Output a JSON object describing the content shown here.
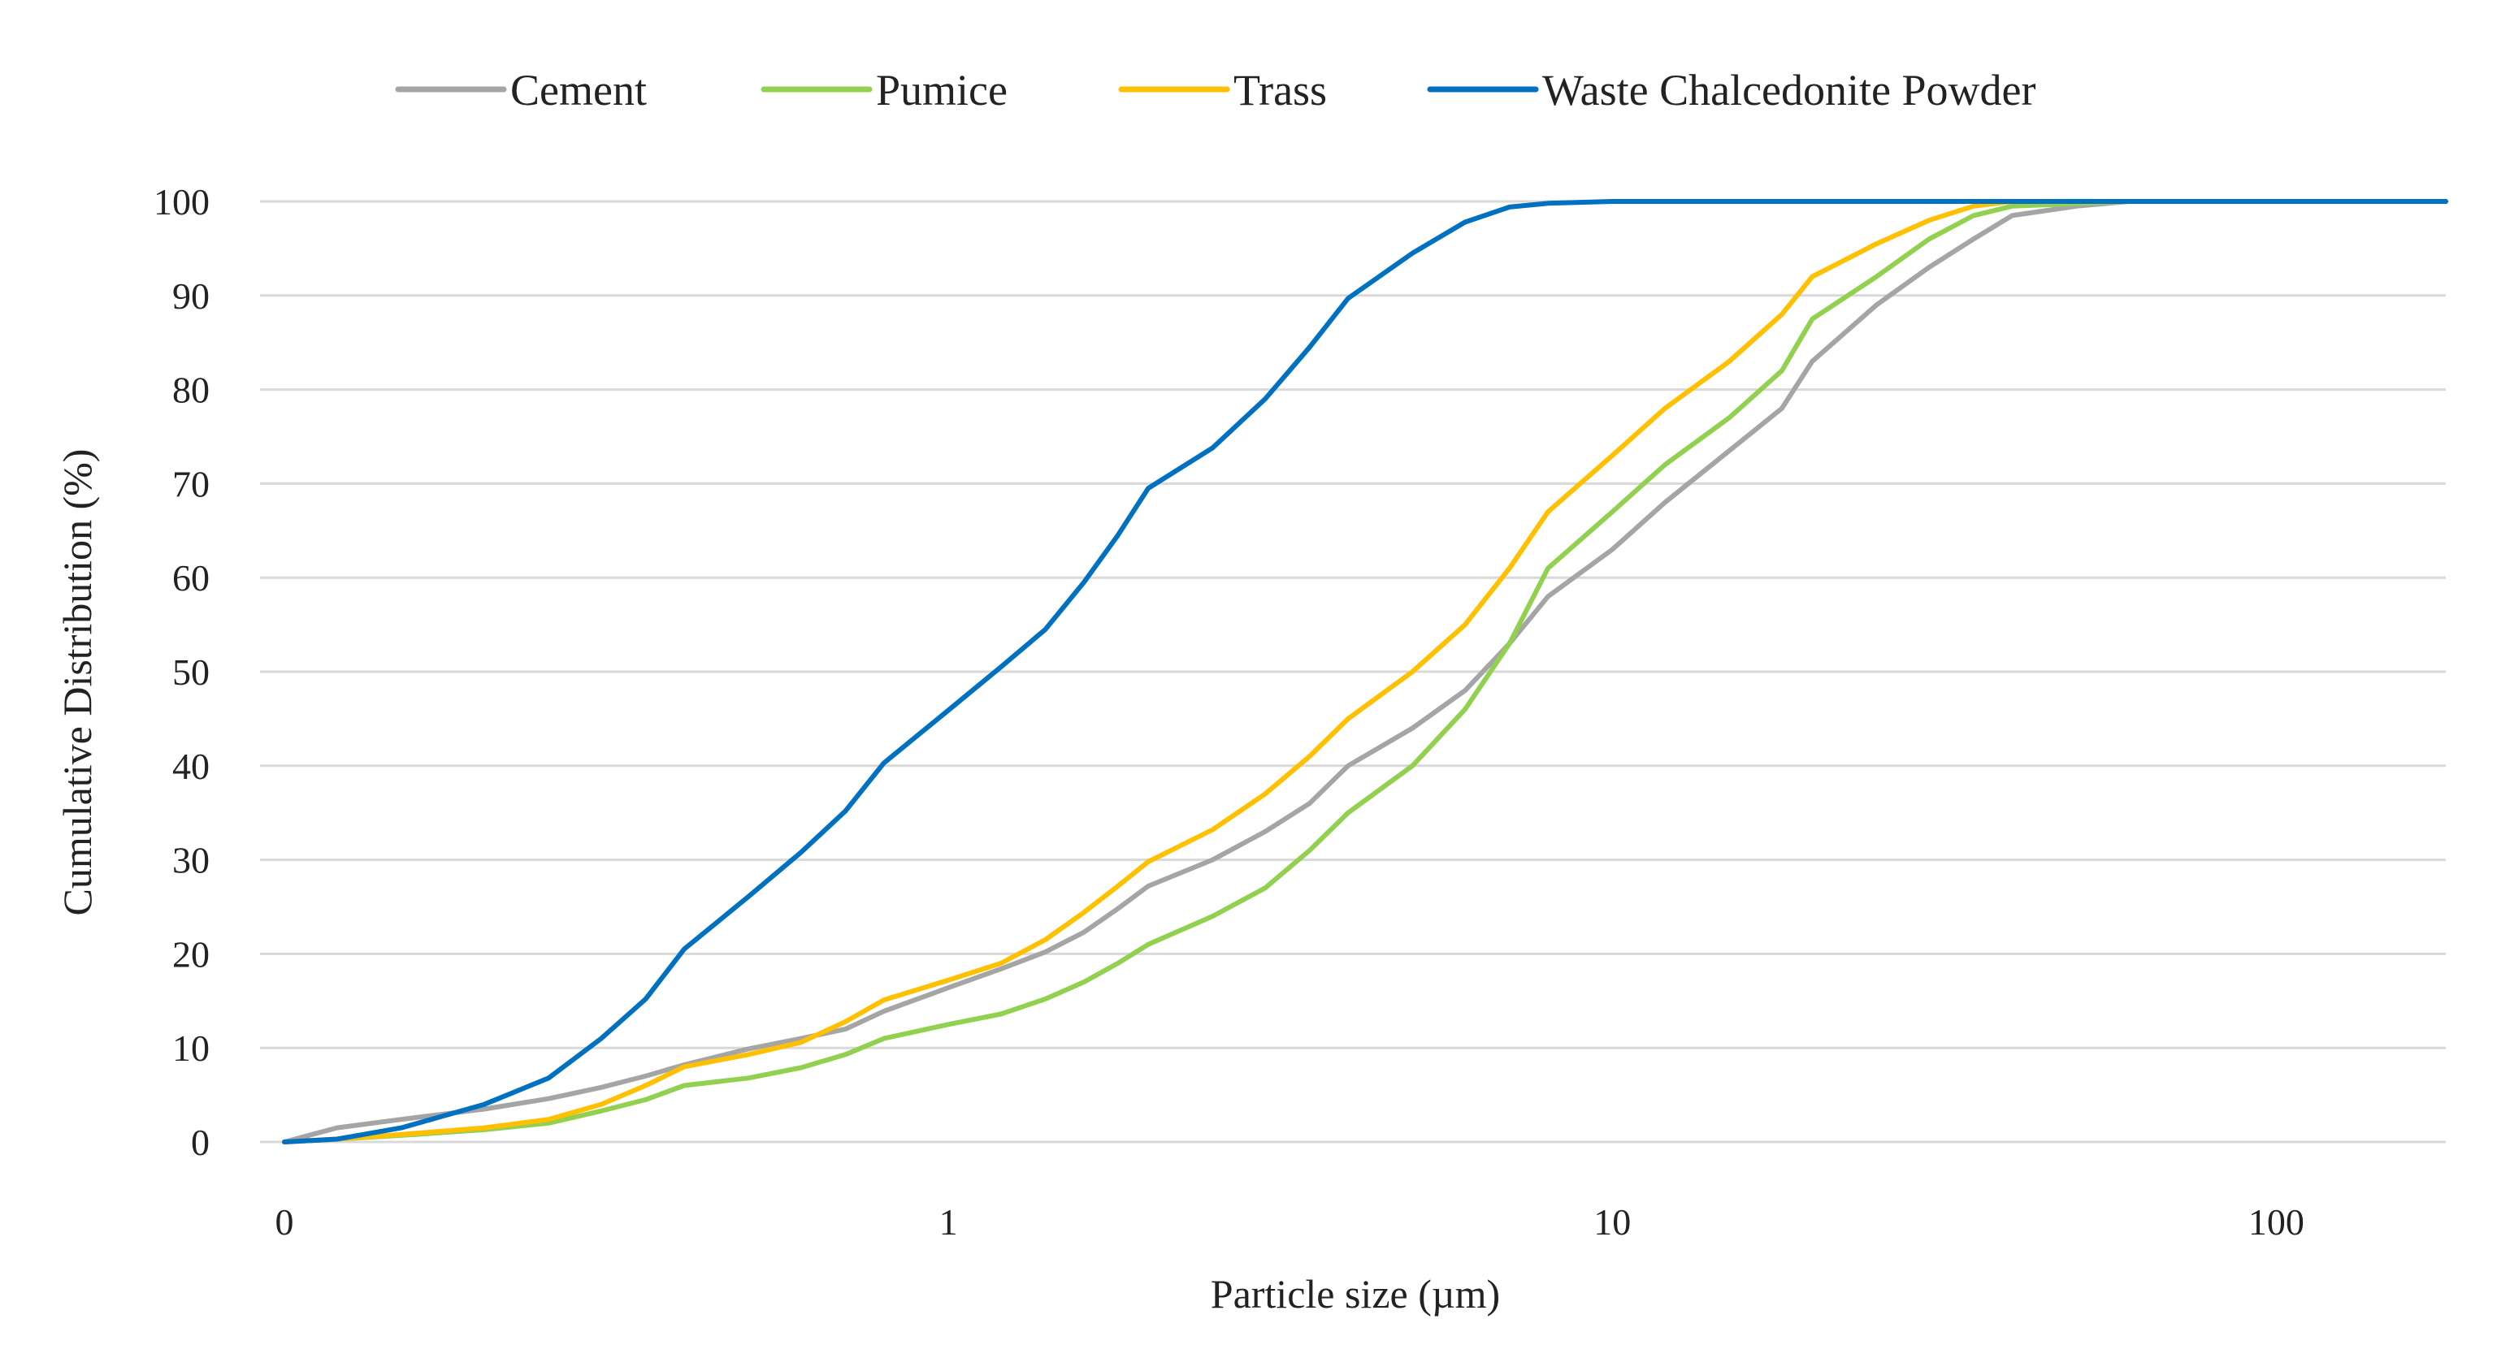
{
  "chart_data": {
    "type": "line",
    "title": "",
    "xlabel": "Particle size (µm)",
    "ylabel": "Cumulative Distribution (%)",
    "x_scale": "log",
    "x_origin_label": "0",
    "x_origin_value": 0.1,
    "xlim": [
      0.1,
      180
    ],
    "ylim": [
      0,
      100
    ],
    "x_ticks": [
      {
        "value": 0.1,
        "label": "0"
      },
      {
        "value": 1,
        "label": "1"
      },
      {
        "value": 10,
        "label": "10"
      },
      {
        "value": 100,
        "label": "100"
      }
    ],
    "y_ticks": [
      {
        "value": 0,
        "label": "0"
      },
      {
        "value": 10,
        "label": "10"
      },
      {
        "value": 20,
        "label": "20"
      },
      {
        "value": 30,
        "label": "30"
      },
      {
        "value": 40,
        "label": "40"
      },
      {
        "value": 50,
        "label": "50"
      },
      {
        "value": 60,
        "label": "60"
      },
      {
        "value": 70,
        "label": "70"
      },
      {
        "value": 80,
        "label": "80"
      },
      {
        "value": 90,
        "label": "90"
      },
      {
        "value": 100,
        "label": "100"
      }
    ],
    "grid": "horizontal",
    "legend_position": "top",
    "series": [
      {
        "name": "Cement",
        "color": "#a5a5a5",
        "points": [
          [
            0.1,
            0
          ],
          [
            0.12,
            1.5
          ],
          [
            0.15,
            2.4
          ],
          [
            0.2,
            3.5
          ],
          [
            0.25,
            4.6
          ],
          [
            0.3,
            5.8
          ],
          [
            0.35,
            7
          ],
          [
            0.4,
            8.2
          ],
          [
            0.5,
            9.9
          ],
          [
            0.6,
            11
          ],
          [
            0.7,
            12
          ],
          [
            0.8,
            13.9
          ],
          [
            1,
            16.4
          ],
          [
            1.2,
            18.4
          ],
          [
            1.4,
            20.2
          ],
          [
            1.6,
            22.3
          ],
          [
            1.8,
            24.8
          ],
          [
            2,
            27.2
          ],
          [
            2.5,
            30
          ],
          [
            3,
            33
          ],
          [
            3.5,
            36
          ],
          [
            4,
            40
          ],
          [
            5,
            44
          ],
          [
            6,
            48
          ],
          [
            7,
            53
          ],
          [
            8,
            58
          ],
          [
            10,
            63
          ],
          [
            12,
            68
          ],
          [
            15,
            73.5
          ],
          [
            18,
            78
          ],
          [
            20,
            83
          ],
          [
            25,
            89
          ],
          [
            30,
            93
          ],
          [
            35,
            96
          ],
          [
            40,
            98.5
          ],
          [
            50,
            99.5
          ],
          [
            60,
            100
          ],
          [
            100,
            100
          ],
          [
            180,
            100
          ]
        ]
      },
      {
        "name": "Pumice",
        "color": "#92d050",
        "points": [
          [
            0.1,
            0
          ],
          [
            0.12,
            0.3
          ],
          [
            0.15,
            0.7
          ],
          [
            0.2,
            1.3
          ],
          [
            0.25,
            2
          ],
          [
            0.3,
            3.3
          ],
          [
            0.35,
            4.5
          ],
          [
            0.4,
            6
          ],
          [
            0.5,
            6.8
          ],
          [
            0.6,
            7.9
          ],
          [
            0.7,
            9.3
          ],
          [
            0.8,
            11
          ],
          [
            1,
            12.5
          ],
          [
            1.2,
            13.6
          ],
          [
            1.4,
            15.2
          ],
          [
            1.6,
            17
          ],
          [
            1.8,
            19
          ],
          [
            2,
            21
          ],
          [
            2.5,
            24
          ],
          [
            3,
            27
          ],
          [
            3.5,
            31
          ],
          [
            4,
            35
          ],
          [
            5,
            40
          ],
          [
            6,
            46
          ],
          [
            7,
            53
          ],
          [
            8,
            61
          ],
          [
            10,
            67
          ],
          [
            12,
            72
          ],
          [
            15,
            77
          ],
          [
            18,
            82
          ],
          [
            20,
            87.5
          ],
          [
            25,
            92
          ],
          [
            30,
            96
          ],
          [
            35,
            98.5
          ],
          [
            40,
            99.5
          ],
          [
            60,
            100
          ],
          [
            100,
            100
          ],
          [
            180,
            100
          ]
        ]
      },
      {
        "name": "Trass",
        "color": "#ffc000",
        "points": [
          [
            0.1,
            0
          ],
          [
            0.12,
            0.3
          ],
          [
            0.15,
            0.8
          ],
          [
            0.2,
            1.5
          ],
          [
            0.25,
            2.4
          ],
          [
            0.3,
            4
          ],
          [
            0.35,
            6
          ],
          [
            0.4,
            8
          ],
          [
            0.5,
            9.3
          ],
          [
            0.6,
            10.6
          ],
          [
            0.7,
            12.8
          ],
          [
            0.8,
            15.1
          ],
          [
            1,
            17.2
          ],
          [
            1.2,
            19
          ],
          [
            1.4,
            21.5
          ],
          [
            1.6,
            24.4
          ],
          [
            1.8,
            27.2
          ],
          [
            2,
            29.8
          ],
          [
            2.5,
            33.2
          ],
          [
            3,
            37
          ],
          [
            3.5,
            41
          ],
          [
            4,
            45
          ],
          [
            5,
            50
          ],
          [
            6,
            55
          ],
          [
            7,
            61
          ],
          [
            8,
            67
          ],
          [
            10,
            73
          ],
          [
            12,
            78
          ],
          [
            15,
            83
          ],
          [
            18,
            88
          ],
          [
            20,
            92
          ],
          [
            25,
            95.5
          ],
          [
            30,
            98
          ],
          [
            35,
            99.5
          ],
          [
            40,
            100
          ],
          [
            100,
            100
          ],
          [
            180,
            100
          ]
        ]
      },
      {
        "name": "Waste Chalcedonite Powder",
        "color": "#0070c0",
        "points": [
          [
            0.1,
            0
          ],
          [
            0.12,
            0.3
          ],
          [
            0.15,
            1.5
          ],
          [
            0.2,
            4
          ],
          [
            0.25,
            6.8
          ],
          [
            0.3,
            11
          ],
          [
            0.35,
            15.2
          ],
          [
            0.4,
            20.5
          ],
          [
            0.5,
            26.1
          ],
          [
            0.6,
            30.8
          ],
          [
            0.7,
            35.2
          ],
          [
            0.8,
            40.3
          ],
          [
            1,
            45.9
          ],
          [
            1.2,
            50.5
          ],
          [
            1.4,
            54.5
          ],
          [
            1.6,
            59.5
          ],
          [
            1.8,
            64.5
          ],
          [
            2,
            69.5
          ],
          [
            2.5,
            73.8
          ],
          [
            3,
            79
          ],
          [
            3.5,
            84.5
          ],
          [
            4,
            89.7
          ],
          [
            5,
            94.5
          ],
          [
            6,
            97.8
          ],
          [
            7,
            99.4
          ],
          [
            8,
            99.8
          ],
          [
            10,
            100
          ],
          [
            100,
            100
          ],
          [
            180,
            100
          ]
        ]
      }
    ]
  }
}
